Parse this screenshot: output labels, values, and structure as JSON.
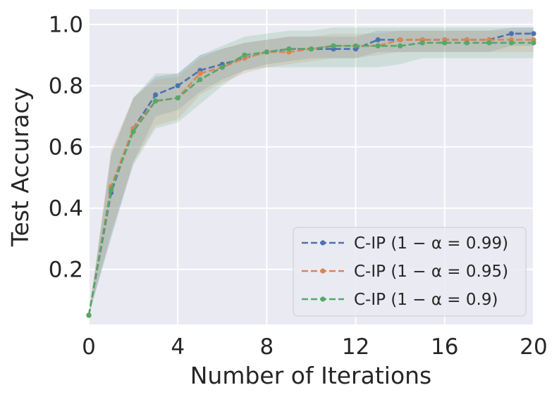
{
  "chart_data": {
    "type": "line",
    "xlabel": "Number of Iterations",
    "ylabel": "Test Accuracy",
    "xlim": [
      0,
      20
    ],
    "ylim": [
      0.02,
      1.05
    ],
    "xticks": [
      0,
      4,
      8,
      12,
      16,
      20
    ],
    "xtick_labels": [
      "0",
      "4",
      "8",
      "12",
      "16",
      "20"
    ],
    "yticks": [
      0.2,
      0.4,
      0.6,
      0.8,
      1.0
    ],
    "ytick_labels": [
      "0.2",
      "0.4",
      "0.6",
      "0.8",
      "1.0"
    ],
    "grid": true,
    "legend_position": "bottom-right",
    "x": [
      0,
      1,
      2,
      3,
      4,
      5,
      6,
      7,
      8,
      9,
      10,
      11,
      12,
      13,
      14,
      15,
      16,
      17,
      18,
      19,
      20
    ],
    "series": [
      {
        "name": "C-IP (1 − α = 0.99)",
        "color": "#4c72b0",
        "values": [
          0.05,
          0.45,
          0.66,
          0.77,
          0.8,
          0.85,
          0.87,
          0.89,
          0.91,
          0.92,
          0.92,
          0.92,
          0.92,
          0.95,
          0.95,
          0.95,
          0.95,
          0.95,
          0.95,
          0.97,
          0.97
        ],
        "band_lower": [
          0.05,
          0.3,
          0.55,
          0.7,
          0.72,
          0.78,
          0.82,
          0.85,
          0.87,
          0.88,
          0.89,
          0.89,
          0.89,
          0.91,
          0.91,
          0.91,
          0.91,
          0.91,
          0.91,
          0.93,
          0.93
        ],
        "band_upper": [
          0.05,
          0.57,
          0.76,
          0.83,
          0.84,
          0.9,
          0.92,
          0.94,
          0.95,
          0.96,
          0.96,
          0.96,
          0.96,
          0.98,
          0.98,
          0.98,
          0.98,
          0.98,
          0.98,
          0.99,
          0.99
        ]
      },
      {
        "name": "C-IP (1 − α = 0.95)",
        "color": "#dd8452",
        "values": [
          0.05,
          0.47,
          0.66,
          0.75,
          0.76,
          0.84,
          0.86,
          0.89,
          0.91,
          0.91,
          0.92,
          0.93,
          0.93,
          0.93,
          0.95,
          0.95,
          0.95,
          0.95,
          0.95,
          0.95,
          0.95
        ],
        "band_lower": [
          0.05,
          0.32,
          0.55,
          0.67,
          0.69,
          0.77,
          0.81,
          0.84,
          0.86,
          0.87,
          0.88,
          0.89,
          0.89,
          0.9,
          0.91,
          0.91,
          0.91,
          0.91,
          0.91,
          0.91,
          0.91
        ],
        "band_upper": [
          0.05,
          0.59,
          0.76,
          0.82,
          0.83,
          0.89,
          0.92,
          0.94,
          0.95,
          0.96,
          0.96,
          0.97,
          0.97,
          0.97,
          0.98,
          0.98,
          0.98,
          0.98,
          0.98,
          0.98,
          0.98
        ]
      },
      {
        "name": "C-IP (1 − α = 0.9)",
        "color": "#55a868",
        "values": [
          0.05,
          0.46,
          0.65,
          0.75,
          0.76,
          0.82,
          0.86,
          0.9,
          0.91,
          0.92,
          0.92,
          0.93,
          0.93,
          0.93,
          0.93,
          0.94,
          0.94,
          0.94,
          0.94,
          0.94,
          0.94
        ],
        "band_lower": [
          0.05,
          0.31,
          0.54,
          0.66,
          0.68,
          0.74,
          0.8,
          0.85,
          0.86,
          0.86,
          0.86,
          0.86,
          0.86,
          0.86,
          0.87,
          0.89,
          0.89,
          0.89,
          0.89,
          0.89,
          0.89
        ],
        "band_upper": [
          0.05,
          0.58,
          0.76,
          0.84,
          0.84,
          0.9,
          0.93,
          0.96,
          0.97,
          0.98,
          0.98,
          0.99,
          0.99,
          0.99,
          0.99,
          0.99,
          0.99,
          0.99,
          0.99,
          0.99,
          0.99
        ]
      }
    ]
  }
}
